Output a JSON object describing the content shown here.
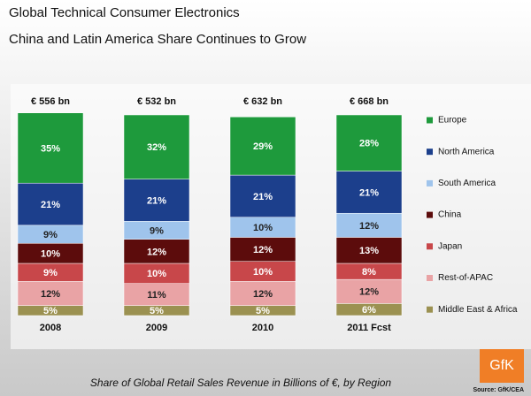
{
  "chart_data": {
    "type": "stacked_bar",
    "title": "Global Technical Consumer Electronics",
    "subtitle": "China and Latin America Share Continues to Grow",
    "categories": [
      "2008",
      "2009",
      "2010",
      "2011 Fcst"
    ],
    "totals": {
      "values": [
        556,
        532,
        632,
        668
      ],
      "value_labels": [
        "€ 556 bn",
        "€ 532 bn",
        "€ 632 bn",
        "€ 668 bn"
      ]
    },
    "series": [
      {
        "name": "Europe",
        "color": "#1e9a3c",
        "values": [
          35,
          32,
          29,
          28
        ],
        "value_labels": [
          "35%",
          "32%",
          "29%",
          "28%"
        ]
      },
      {
        "name": "North America",
        "color": "#1c3f8c",
        "values": [
          21,
          21,
          21,
          21
        ],
        "value_labels": [
          "21%",
          "21%",
          "21%",
          "21%"
        ]
      },
      {
        "name": "South America",
        "color": "#9fc4ec",
        "values": [
          9,
          9,
          10,
          12
        ],
        "value_labels": [
          "9%",
          "9%",
          "10%",
          "12%"
        ]
      },
      {
        "name": "China",
        "color": "#5c0c0c",
        "values": [
          10,
          12,
          12,
          13
        ],
        "value_labels": [
          "10%",
          "12%",
          "12%",
          "13%"
        ]
      },
      {
        "name": "Japan",
        "color": "#c8474a",
        "values": [
          9,
          10,
          10,
          8
        ],
        "value_labels": [
          "9%",
          "10%",
          "10%",
          "8%"
        ]
      },
      {
        "name": "Rest-of-APAC",
        "color": "#e9a3a5",
        "values": [
          12,
          11,
          12,
          12
        ],
        "value_labels": [
          "12%",
          "11%",
          "12%",
          "12%"
        ]
      },
      {
        "name": "Middle East & Africa",
        "color": "#9b9151",
        "values": [
          5,
          5,
          5,
          6
        ],
        "value_labels": [
          "5%",
          "5%",
          "5%",
          "6%"
        ]
      }
    ],
    "footnote": "Share of Global  Retail  Sales Revenue in Billions of  €, by Region",
    "source": "Source: GfK/CEA",
    "logo": "GfK"
  }
}
